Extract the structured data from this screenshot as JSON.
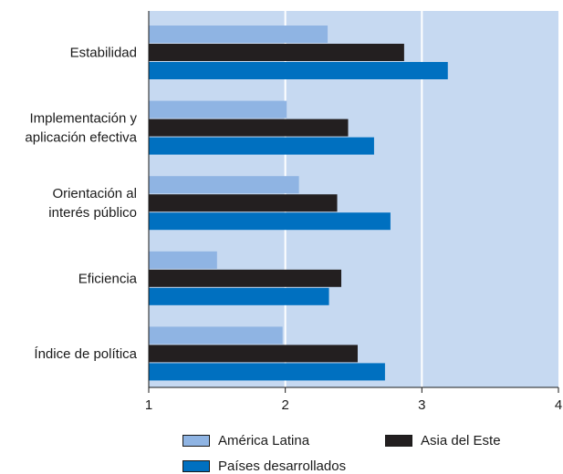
{
  "chart_data": {
    "type": "bar",
    "orientation": "horizontal",
    "title": "",
    "xlabel": "",
    "ylabel": "",
    "xlim": [
      1,
      4
    ],
    "x_ticks": [
      "1",
      "2",
      "3",
      "4"
    ],
    "grid": true,
    "legend_position": "bottom",
    "background_color": "#c6d9f1",
    "categories": [
      "Estabilidad",
      "Implementación y\naplicación efectiva",
      "Orientación al\ninterés público",
      "Eficiencia",
      "Índice de política"
    ],
    "series": [
      {
        "name": "América Latina",
        "color": "#8fb4e3",
        "values": [
          2.31,
          2.01,
          2.1,
          1.5,
          1.98
        ]
      },
      {
        "name": "Asia del Este",
        "color": "#231f20",
        "values": [
          2.87,
          2.46,
          2.38,
          2.41,
          2.53
        ]
      },
      {
        "name": "Países desarrollados",
        "color": "#0070c0",
        "values": [
          3.19,
          2.65,
          2.77,
          2.32,
          2.73
        ]
      }
    ]
  }
}
